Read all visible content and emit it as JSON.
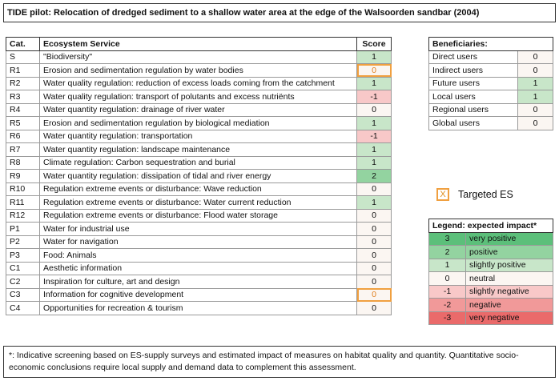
{
  "title": "TIDE pilot: Relocation of dredged sediment to a shallow water area at the edge of the Walsoorden sandbar (2004)",
  "es_table": {
    "headers": {
      "cat": "Cat.",
      "service": "Ecosystem Service",
      "score": "Score"
    },
    "rows": [
      {
        "cat": "S",
        "service": "\"Biodiversity\"",
        "score": "1",
        "color": "#c8e6c9"
      },
      {
        "cat": "R1",
        "service": "Erosion and sedimentation regulation by water bodies",
        "score": "0",
        "color": "#fbf6f2",
        "targeted": true
      },
      {
        "cat": "R2",
        "service": "Water quality regulation: reduction of excess loads coming from the catchment",
        "score": "1",
        "color": "#c8e6c9"
      },
      {
        "cat": "R3",
        "service": "Water quality regulation: transport of polutants and excess nutriënts",
        "score": "-1",
        "color": "#f8c8c8"
      },
      {
        "cat": "R4",
        "service": "Water quantity regulation: drainage of river water",
        "score": "0",
        "color": "#fbf6f2"
      },
      {
        "cat": "R5",
        "service": "Erosion and sedimentation regulation by biological mediation",
        "score": "1",
        "color": "#c8e6c9"
      },
      {
        "cat": "R6",
        "service": "Water quantity regulation: transportation",
        "score": "-1",
        "color": "#f8c8c8"
      },
      {
        "cat": "R7",
        "service": "Water quantity regulation: landscape maintenance",
        "score": "1",
        "color": "#c8e6c9"
      },
      {
        "cat": "R8",
        "service": "Climate regulation: Carbon sequestration and burial",
        "score": "1",
        "color": "#c8e6c9"
      },
      {
        "cat": "R9",
        "service": "Water quantity regulation: dissipation of tidal and river energy",
        "score": "2",
        "color": "#93d3a0"
      },
      {
        "cat": "R10",
        "service": "Regulation extreme events or disturbance: Wave reduction",
        "score": "0",
        "color": "#fbf6f2"
      },
      {
        "cat": "R11",
        "service": "Regulation extreme events or disturbance: Water current reduction",
        "score": "1",
        "color": "#c8e6c9"
      },
      {
        "cat": "R12",
        "service": "Regulation extreme events or disturbance: Flood water storage",
        "score": "0",
        "color": "#fbf6f2"
      },
      {
        "cat": "P1",
        "service": "Water for industrial use",
        "score": "0",
        "color": "#fbf6f2"
      },
      {
        "cat": "P2",
        "service": "Water for navigation",
        "score": "0",
        "color": "#fbf6f2"
      },
      {
        "cat": "P3",
        "service": "Food: Animals",
        "score": "0",
        "color": "#fbf6f2"
      },
      {
        "cat": "C1",
        "service": "Aesthetic information",
        "score": "0",
        "color": "#fbf6f2"
      },
      {
        "cat": "C2",
        "service": "Inspiration for culture, art and design",
        "score": "0",
        "color": "#fbf6f2"
      },
      {
        "cat": "C3",
        "service": "Information for cognitive development",
        "score": "0",
        "color": "#fbf6f2",
        "targeted": true
      },
      {
        "cat": "C4",
        "service": "Opportunities for recreation & tourism",
        "score": "0",
        "color": "#fbf6f2"
      }
    ]
  },
  "beneficiaries": {
    "header": "Beneficiaries:",
    "rows": [
      {
        "label": "Direct users",
        "score": "0",
        "color": "#fbf6f2"
      },
      {
        "label": "Indirect users",
        "score": "0",
        "color": "#fbf6f2"
      },
      {
        "label": "Future users",
        "score": "1",
        "color": "#c8e6c9"
      },
      {
        "label": "Local users",
        "score": "1",
        "color": "#c8e6c9"
      },
      {
        "label": "Regional users",
        "score": "0",
        "color": "#fbf6f2"
      },
      {
        "label": "Global users",
        "score": "0",
        "color": "#fbf6f2"
      }
    ]
  },
  "targeted": {
    "marker": "X",
    "label": "Targeted ES",
    "color": "#f0a040"
  },
  "legend": {
    "header": "Legend: expected  impact*",
    "rows": [
      {
        "score": "3",
        "label": "very positive",
        "color": "#5cbf7a"
      },
      {
        "score": "2",
        "label": "positive",
        "color": "#93d3a0"
      },
      {
        "score": "1",
        "label": "slightly positive",
        "color": "#c8e6c9"
      },
      {
        "score": "0",
        "label": "neutral",
        "color": "#fbf6f2"
      },
      {
        "score": "-1",
        "label": "slightly negative",
        "color": "#f8c8c8"
      },
      {
        "score": "-2",
        "label": "negative",
        "color": "#f19999"
      },
      {
        "score": "-3",
        "label": "very negative",
        "color": "#ea6a6a"
      }
    ]
  },
  "footnote": "*: Indicative screening based on ES-supply surveys and estimated impact of measures on habitat quality and quantity. Quantitative socio-economic conclusions require local supply and demand data to complement this assessment."
}
